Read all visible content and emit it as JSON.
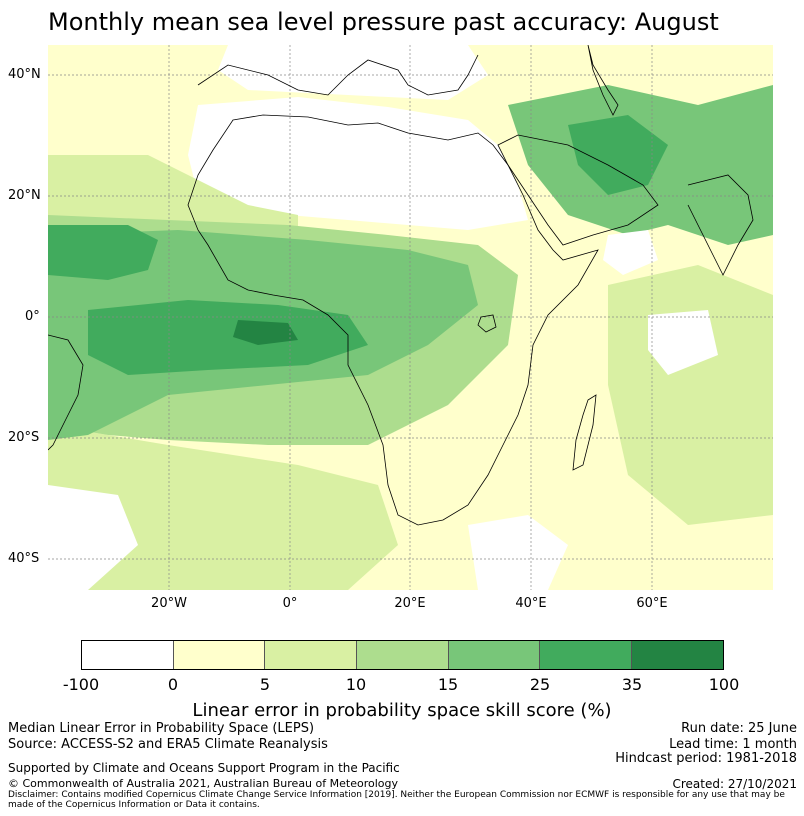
{
  "title": "Monthly mean sea level pressure past accuracy: August",
  "map": {
    "lat_labels": [
      "40°N",
      "20°N",
      "0°",
      "20°S",
      "40°S"
    ],
    "lon_labels": [
      "20°W",
      "0°",
      "20°E",
      "40°E",
      "60°E"
    ],
    "extent": {
      "lon": [
        -40,
        80
      ],
      "lat": [
        -45,
        45
      ]
    }
  },
  "colorbar": {
    "ticks": [
      "-100",
      "0",
      "5",
      "10",
      "15",
      "25",
      "35",
      "100"
    ],
    "colors": [
      "#ffffff",
      "#ffffcc",
      "#d9f0a3",
      "#addd8e",
      "#78c679",
      "#41ab5d",
      "#238443"
    ],
    "label": "Linear error in probability space skill score (%)"
  },
  "footer": {
    "left_line1": "Median Linear Error in Probability Space (LEPS)",
    "left_line2": "Source: ACCESS-S2 and ERA5 Climate Reanalysis",
    "right_line1": "Run date: 25 June",
    "right_line2": "Lead time: 1 month",
    "right_line3": "Hindcast period: 1981-2018",
    "support": "Supported by Climate and Oceans Support Program in the Pacific",
    "copyright": "© Commonwealth of Australia 2021, Australian Bureau of Meteorology",
    "created": "Created: 27/10/2021",
    "disclaimer": "Disclaimer: Contains modified Copernicus Climate Change Service Information [2019]. Neither the European Commission nor ECMWF is responsible for any use that may be made of the Copernicus Information or Data it contains."
  }
}
